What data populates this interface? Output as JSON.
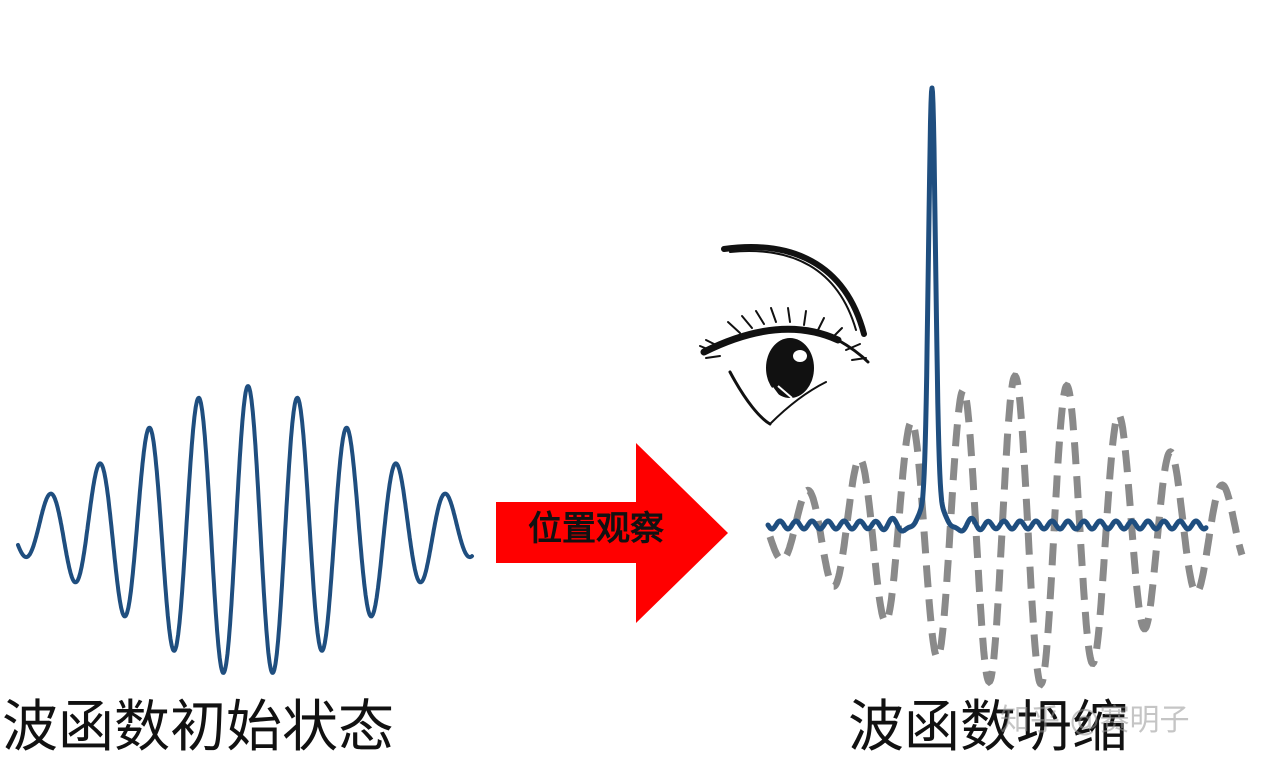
{
  "diagram": {
    "left_caption": "波函数初始状态",
    "right_caption": "波函数坍缩",
    "arrow_label": "位置观察",
    "watermark": "知乎 @赛明子"
  },
  "colors": {
    "wave": "#1f4e7f",
    "dashed_wave": "#8a8a8a",
    "arrow": "#ff0000",
    "text": "#111111"
  },
  "icons": {
    "observer": "eye-icon"
  }
}
